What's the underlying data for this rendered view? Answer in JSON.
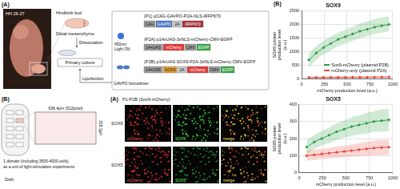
{
  "panels": {
    "culture": {
      "label": "(A)",
      "stage": "HH 26-27",
      "tissue": "Hindlimb bud",
      "region": "Distal mesenchyme",
      "steps": [
        "Dissociation",
        "Primary culture",
        "Lipofection"
      ],
      "light": [
        "450nm",
        "Light ON"
      ],
      "dimer": "GAVPO homodimer",
      "plasmids": [
        {
          "name": "(P1) pCAG-GAVPO-P2A-NLS-iRFP670",
          "parts": [
            "CAG",
            "GAVPO",
            "2A",
            "iRFP670"
          ],
          "colors": [
            "#9e9e9e",
            "#4a78c8",
            "#cccccc",
            "#a8323a"
          ]
        },
        {
          "name": "(P2A) p14xUAS-3xNLS-mCherry-CMV-EGFP",
          "parts": [
            "14×UAS",
            "mCherry",
            "CMV",
            "EGFP"
          ],
          "colors": [
            "#9e9e9e",
            "#e23c3c",
            "#9e9e9e",
            "#3aa84a"
          ]
        },
        {
          "name": "(P2B) p14xUAS-SOX9-P2A-3xNLS-mCherry-CMV-EGFP",
          "parts": [
            "14×UAS",
            "SOX9",
            "2A",
            "mCherry",
            "CMV",
            "EGFP"
          ],
          "colors": [
            "#9e9e9e",
            "#e8a33a",
            "#cccccc",
            "#e23c3c",
            "#9e9e9e",
            "#3aa84a"
          ]
        }
      ]
    },
    "dish": {
      "label": "(B)",
      "width": "636.4μm (512pixel)",
      "height": "318.2μm",
      "note": [
        "1 domain (including 3500-4000 cells)",
        "as a unit of light-stimulation experiments"
      ],
      "dish": "Dish"
    },
    "images": {
      "label": "(A)",
      "title": "P1-P2B (Sox9-mCherry)",
      "rows": [
        {
          "name": "SOX9",
          "channels": [
            "mCherry",
            "SOX9",
            "merge"
          ]
        },
        {
          "name": "SOX5",
          "channels": [
            "mCherry",
            "SOX5",
            "merge"
          ]
        }
      ]
    }
  },
  "chart_label": "(B)",
  "chart_data": [
    {
      "type": "line",
      "title": "SOX9",
      "x_label": "mCherry production level (a.u.)",
      "y_label": "SOX9 protein production level (a.u.)",
      "x": [
        80,
        160,
        240,
        320,
        400,
        480,
        560,
        640,
        720,
        800,
        880,
        960
      ],
      "xlim": [
        0,
        1000
      ],
      "xticks": [
        0,
        250,
        500,
        750,
        1000
      ],
      "ylim": [
        0,
        2500
      ],
      "yticks": [
        0,
        500,
        1000,
        1500,
        2000,
        2500
      ],
      "grid": true,
      "legend": "bottom-right",
      "series": [
        {
          "name": "Sox9-mCherry (plasmid P2B)",
          "color": "#2e9e44",
          "marker": "circle",
          "values": [
            700,
            950,
            1150,
            1300,
            1450,
            1550,
            1650,
            1750,
            1820,
            1900,
            1950,
            2000
          ],
          "lower": [
            450,
            700,
            900,
            1050,
            1200,
            1300,
            1400,
            1500,
            1570,
            1650,
            1700,
            1750
          ],
          "upper": [
            950,
            1200,
            1400,
            1550,
            1700,
            1810,
            1920,
            2030,
            2110,
            2200,
            2250,
            2300
          ]
        },
        {
          "name": "mCherry-only (plasmid P2A)",
          "color": "#e8473a",
          "marker": "circle",
          "values": [
            60,
            60,
            62,
            64,
            65,
            66,
            68,
            70,
            70,
            72,
            74,
            75
          ],
          "lower": [
            30,
            30,
            32,
            34,
            35,
            36,
            38,
            40,
            40,
            42,
            44,
            45
          ],
          "upper": [
            90,
            90,
            92,
            94,
            95,
            96,
            98,
            100,
            100,
            102,
            104,
            105
          ]
        }
      ]
    },
    {
      "type": "line",
      "title": "SOX5",
      "x_label": "mCherry production level (a.u.)",
      "y_label": "SOX5 protein production level (a.u.)",
      "x": [
        80,
        160,
        240,
        320,
        400,
        480,
        560,
        640,
        720,
        800,
        880,
        960
      ],
      "xlim": [
        0,
        1000
      ],
      "xticks": [
        0,
        250,
        500,
        750,
        1000
      ],
      "ylim": [
        0,
        400
      ],
      "yticks": [
        0,
        100,
        200,
        300,
        400
      ],
      "grid": true,
      "series": [
        {
          "color": "#2e9e44",
          "marker": "circle",
          "values": [
            150,
            180,
            200,
            220,
            240,
            255,
            270,
            280,
            290,
            300,
            305,
            310
          ],
          "lower": [
            110,
            140,
            160,
            175,
            190,
            205,
            215,
            225,
            230,
            240,
            240,
            245
          ],
          "upper": [
            190,
            220,
            245,
            265,
            290,
            305,
            325,
            335,
            350,
            360,
            370,
            375
          ]
        },
        {
          "color": "#e8473a",
          "marker": "circle",
          "values": [
            100,
            105,
            110,
            115,
            120,
            125,
            130,
            135,
            140,
            145,
            148,
            150
          ],
          "lower": [
            70,
            75,
            80,
            84,
            88,
            92,
            95,
            98,
            100,
            102,
            104,
            105
          ],
          "upper": [
            130,
            135,
            140,
            146,
            152,
            158,
            165,
            172,
            180,
            188,
            192,
            195
          ]
        }
      ]
    }
  ]
}
